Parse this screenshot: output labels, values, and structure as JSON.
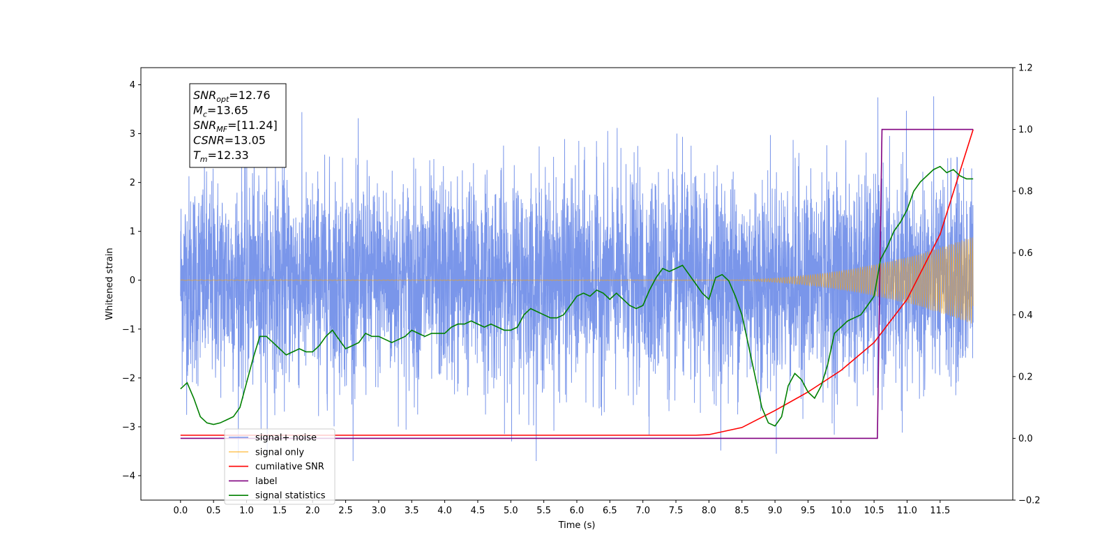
{
  "chart_data": {
    "type": "line",
    "xlabel": "Time (s)",
    "ylabel": "Whitened strain",
    "xlim": [
      -0.6,
      12.6
    ],
    "ylim": [
      -4.5,
      4.35
    ],
    "y2lim": [
      -0.2,
      1.2
    ],
    "x_ticks": [
      "0.0",
      "0.5",
      "1.0",
      "1.5",
      "2.0",
      "2.5",
      "3.0",
      "3.5",
      "4.0",
      "4.5",
      "5.0",
      "5.5",
      "6.0",
      "6.5",
      "7.0",
      "7.5",
      "8.0",
      "8.5",
      "9.0",
      "9.5",
      "10.0",
      "10.5",
      "11.0",
      "11.5"
    ],
    "y_ticks": [
      "4",
      "3",
      "2",
      "1",
      "0",
      "−1",
      "−2",
      "−3",
      "−4"
    ],
    "y2_ticks": [
      "1.2",
      "1.0",
      "0.8",
      "0.6",
      "0.4",
      "0.2",
      "0.0",
      "−0.2"
    ],
    "colors": {
      "noise": "#4169e1",
      "signal": "#ffa500",
      "snr": "#ff0000",
      "label": "#800080",
      "stats": "#008000"
    },
    "series": [
      {
        "name": "signal+ noise",
        "axis": "left",
        "style": "dense noise, std ~1, peaks to about ±3.9",
        "x_range": [
          0.0,
          12.0
        ]
      },
      {
        "name": "signal only",
        "axis": "left",
        "style": "chirp, amplitude grows from ~0 to ~0.9 near 12.0",
        "x_range": [
          0.0,
          12.0
        ]
      },
      {
        "name": "cumilative SNR",
        "axis": "right",
        "x": [
          0.0,
          7.0,
          7.8,
          8.0,
          8.5,
          9.0,
          9.5,
          10.0,
          10.5,
          11.0,
          11.5,
          12.0
        ],
        "y": [
          0.01,
          0.01,
          0.01,
          0.012,
          0.035,
          0.09,
          0.15,
          0.22,
          0.31,
          0.45,
          0.66,
          1.0
        ]
      },
      {
        "name": "label",
        "axis": "right",
        "x": [
          0.0,
          10.55,
          10.62,
          12.0
        ],
        "y": [
          0.0,
          0.0,
          1.0,
          1.0
        ]
      },
      {
        "name": "signal statistics",
        "axis": "right",
        "x": [
          0.0,
          0.1,
          0.2,
          0.3,
          0.4,
          0.5,
          0.6,
          0.7,
          0.8,
          0.9,
          1.0,
          1.1,
          1.2,
          1.3,
          1.4,
          1.5,
          1.6,
          1.7,
          1.8,
          1.9,
          2.0,
          2.1,
          2.2,
          2.3,
          2.4,
          2.5,
          2.6,
          2.7,
          2.8,
          2.9,
          3.0,
          3.1,
          3.2,
          3.3,
          3.4,
          3.5,
          3.6,
          3.7,
          3.8,
          3.9,
          4.0,
          4.1,
          4.2,
          4.3,
          4.4,
          4.5,
          4.6,
          4.7,
          4.8,
          4.9,
          5.0,
          5.1,
          5.2,
          5.3,
          5.4,
          5.5,
          5.6,
          5.7,
          5.8,
          5.9,
          6.0,
          6.1,
          6.2,
          6.3,
          6.4,
          6.5,
          6.6,
          6.7,
          6.8,
          6.9,
          7.0,
          7.1,
          7.2,
          7.3,
          7.4,
          7.5,
          7.6,
          7.7,
          7.8,
          7.9,
          8.0,
          8.1,
          8.2,
          8.3,
          8.4,
          8.5,
          8.6,
          8.7,
          8.8,
          8.9,
          9.0,
          9.1,
          9.2,
          9.3,
          9.4,
          9.5,
          9.6,
          9.7,
          9.8,
          9.9,
          10.0,
          10.1,
          10.2,
          10.3,
          10.4,
          10.5,
          10.6,
          10.7,
          10.8,
          10.9,
          11.0,
          11.1,
          11.2,
          11.3,
          11.4,
          11.5,
          11.6,
          11.7,
          11.8,
          11.9,
          12.0
        ],
        "y": [
          0.16,
          0.18,
          0.13,
          0.07,
          0.05,
          0.045,
          0.05,
          0.06,
          0.07,
          0.1,
          0.18,
          0.26,
          0.33,
          0.33,
          0.31,
          0.29,
          0.27,
          0.28,
          0.29,
          0.28,
          0.28,
          0.3,
          0.33,
          0.35,
          0.32,
          0.29,
          0.3,
          0.31,
          0.34,
          0.33,
          0.33,
          0.32,
          0.31,
          0.32,
          0.33,
          0.35,
          0.34,
          0.33,
          0.34,
          0.34,
          0.34,
          0.36,
          0.37,
          0.37,
          0.38,
          0.37,
          0.36,
          0.37,
          0.36,
          0.35,
          0.35,
          0.36,
          0.4,
          0.42,
          0.41,
          0.4,
          0.39,
          0.39,
          0.4,
          0.43,
          0.46,
          0.47,
          0.46,
          0.48,
          0.47,
          0.45,
          0.47,
          0.45,
          0.43,
          0.42,
          0.43,
          0.48,
          0.52,
          0.55,
          0.54,
          0.55,
          0.56,
          0.53,
          0.5,
          0.47,
          0.45,
          0.52,
          0.53,
          0.51,
          0.46,
          0.4,
          0.3,
          0.2,
          0.1,
          0.05,
          0.04,
          0.07,
          0.17,
          0.21,
          0.19,
          0.15,
          0.13,
          0.17,
          0.24,
          0.34,
          0.36,
          0.38,
          0.39,
          0.4,
          0.43,
          0.46,
          0.58,
          0.62,
          0.67,
          0.7,
          0.74,
          0.8,
          0.83,
          0.85,
          0.87,
          0.88,
          0.86,
          0.87,
          0.85,
          0.84,
          0.84
        ]
      }
    ],
    "legend": {
      "placement": "lower-left",
      "entries": [
        "signal+ noise",
        "signal only",
        "cumilative SNR",
        "label",
        "signal statistics"
      ]
    },
    "annotation": {
      "lines": [
        {
          "var": "SNR",
          "sub": "opt",
          "value": "=12.76"
        },
        {
          "var": "M",
          "sub": "c",
          "value": "=13.65"
        },
        {
          "var": "SNR",
          "sub": "MF",
          "value": "=[11.24]"
        },
        {
          "var": "CSNR",
          "sub": "",
          "value": "=13.05"
        },
        {
          "var": "T",
          "sub": "m",
          "value": "=12.33"
        }
      ]
    }
  }
}
